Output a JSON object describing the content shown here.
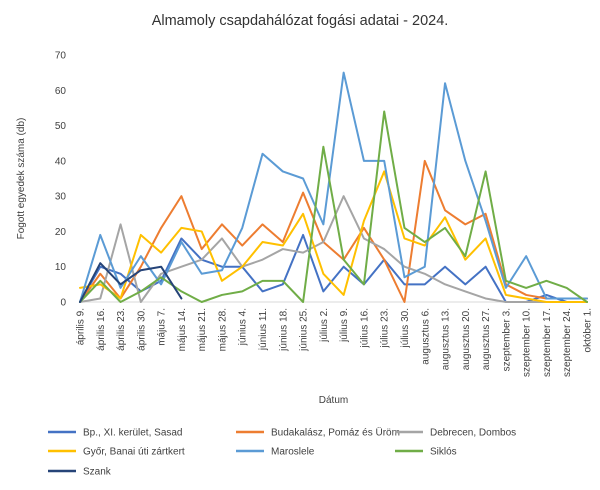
{
  "chart_data": {
    "type": "line",
    "title": "Almamoly csapdahálózat fogási adatai - 2024.",
    "xlabel": "Dátum",
    "ylabel": "Fogott egyedek száma (db)",
    "ylim": [
      0,
      70
    ],
    "yticks": [
      0,
      10,
      20,
      30,
      40,
      50,
      60,
      70
    ],
    "grid": false,
    "legend_position": "bottom",
    "categories": [
      "április 9.",
      "április 16.",
      "április 23.",
      "április 30.",
      "május 7.",
      "május 14.",
      "május 21.",
      "május 28.",
      "június 4.",
      "június 11.",
      "június 18.",
      "június 25.",
      "július 2.",
      "július 9.",
      "július 16.",
      "július 23.",
      "július 30.",
      "augusztus 6.",
      "augusztus 13.",
      "augusztus 20.",
      "augusztus 27.",
      "szeptember 3.",
      "szeptember 10.",
      "szeptember 17.",
      "szeptember 24.",
      "október 1."
    ],
    "series": [
      {
        "name": "Bp., XI. kerület, Sasad",
        "color": "#4472C4",
        "values": [
          0,
          10,
          8,
          3,
          6,
          18,
          12,
          10,
          10,
          3,
          5,
          19,
          3,
          10,
          5,
          12,
          5,
          5,
          10,
          5,
          10,
          0,
          0,
          2,
          0,
          0
        ]
      },
      {
        "name": "Budakalász, Pomáz és Üröm",
        "color": "#ED7D31",
        "values": [
          0,
          8,
          1,
          10,
          21,
          30,
          15,
          22,
          16,
          22,
          17,
          31,
          17,
          12,
          21,
          12,
          0,
          40,
          26,
          22,
          25,
          5,
          2,
          1,
          1,
          1
        ]
      },
      {
        "name": "Debrecen, Dombos",
        "color": "#A5A5A5",
        "values": [
          0,
          1,
          22,
          0,
          8,
          10,
          12,
          18,
          10,
          12,
          15,
          14,
          17,
          30,
          18,
          15,
          10,
          8,
          5,
          3,
          1,
          0,
          0,
          0,
          0,
          0
        ]
      },
      {
        "name": "Győr, Banai úti zártkert",
        "color": "#FFC000",
        "values": [
          4,
          5,
          1,
          19,
          14,
          21,
          20,
          6,
          10,
          17,
          16,
          25,
          8,
          2,
          23,
          37,
          18,
          16,
          24,
          12,
          18,
          2,
          1,
          0,
          0,
          0
        ]
      },
      {
        "name": "Maroslele",
        "color": "#5B9BD5",
        "values": [
          0,
          19,
          4,
          13,
          5,
          17,
          8,
          9,
          21,
          42,
          37,
          35,
          22,
          65,
          40,
          40,
          7,
          10,
          62,
          40,
          23,
          4,
          13,
          1,
          1,
          1
        ]
      },
      {
        "name": "Siklós",
        "color": "#70AD47",
        "values": [
          0,
          6,
          0,
          3,
          7,
          3,
          0,
          2,
          3,
          6,
          6,
          0,
          44,
          12,
          5,
          54,
          21,
          17,
          21,
          13,
          37,
          6,
          4,
          6,
          4,
          0
        ]
      },
      {
        "name": "Szank",
        "color": "#264478",
        "values": [
          0,
          11,
          5,
          9,
          10,
          1,
          null,
          null,
          null,
          null,
          null,
          null,
          null,
          null,
          null,
          null,
          null,
          null,
          null,
          null,
          null,
          null,
          null,
          null,
          null,
          null
        ]
      }
    ]
  }
}
